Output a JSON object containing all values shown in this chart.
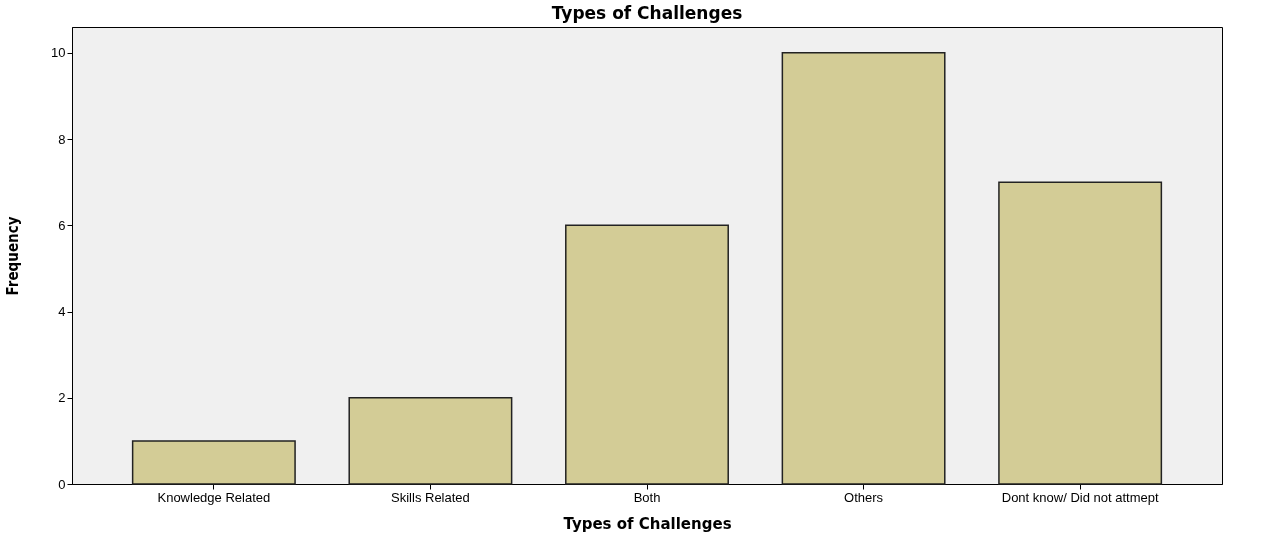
{
  "chart_data": {
    "type": "bar",
    "title": "Types of Challenges",
    "xlabel": "Types of Challenges",
    "ylabel": "Frequency",
    "categories": [
      "Knowledge Related",
      "Skills Related",
      "Both",
      "Others",
      "Dont know/ Did not attmept"
    ],
    "values": [
      1,
      2,
      6,
      10,
      7
    ],
    "color": "#d3cc96",
    "ylim": [
      0,
      10.6
    ],
    "yticks": [
      0,
      2,
      4,
      6,
      8,
      10
    ],
    "grid": false
  }
}
